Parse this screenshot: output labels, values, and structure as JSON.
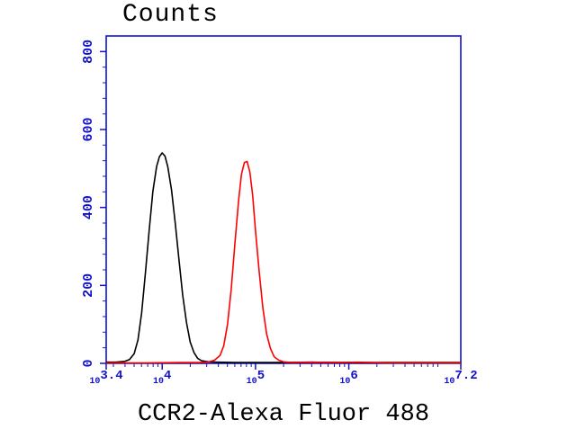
{
  "chart_data": {
    "type": "line",
    "title": "Counts",
    "xlabel": "CCR2-Alexa Fluor 488",
    "ylabel": "Counts",
    "x_scale": "log10",
    "xlim": [
      3.4,
      7.2
    ],
    "ylim": [
      0,
      840
    ],
    "y_ticks": [
      0,
      200,
      400,
      600,
      800
    ],
    "y_minor_step": 40,
    "x_tick_base": "10",
    "x_ticks": [
      {
        "exponent": "3.4",
        "value": 3.4
      },
      {
        "exponent": "4",
        "value": 4
      },
      {
        "exponent": "5",
        "value": 5
      },
      {
        "exponent": "6",
        "value": 6
      },
      {
        "exponent": "7.2",
        "value": 7.2
      }
    ],
    "axis_color": "#1212CC",
    "background": "#FFFFFF",
    "grid": false,
    "legend": "none",
    "series": [
      {
        "name": "black-curve",
        "color": "#000000",
        "points": [
          [
            3.4,
            3
          ],
          [
            3.5,
            3
          ],
          [
            3.6,
            5
          ],
          [
            3.65,
            10
          ],
          [
            3.7,
            25
          ],
          [
            3.74,
            60
          ],
          [
            3.78,
            130
          ],
          [
            3.82,
            230
          ],
          [
            3.86,
            340
          ],
          [
            3.9,
            440
          ],
          [
            3.94,
            505
          ],
          [
            3.97,
            530
          ],
          [
            4.0,
            540
          ],
          [
            4.03,
            532
          ],
          [
            4.06,
            505
          ],
          [
            4.1,
            445
          ],
          [
            4.14,
            360
          ],
          [
            4.18,
            265
          ],
          [
            4.22,
            175
          ],
          [
            4.26,
            105
          ],
          [
            4.3,
            55
          ],
          [
            4.34,
            28
          ],
          [
            4.38,
            13
          ],
          [
            4.42,
            7
          ],
          [
            4.5,
            4
          ],
          [
            4.6,
            3
          ],
          [
            4.8,
            2
          ],
          [
            5.2,
            2
          ],
          [
            5.6,
            3
          ],
          [
            6.0,
            2
          ],
          [
            6.5,
            2
          ],
          [
            7.0,
            2
          ],
          [
            7.2,
            2
          ]
        ]
      },
      {
        "name": "red-curve",
        "color": "#FF0000",
        "points": [
          [
            3.4,
            1
          ],
          [
            3.8,
            1
          ],
          [
            4.2,
            2
          ],
          [
            4.4,
            2
          ],
          [
            4.5,
            4
          ],
          [
            4.56,
            8
          ],
          [
            4.62,
            20
          ],
          [
            4.66,
            45
          ],
          [
            4.7,
            100
          ],
          [
            4.74,
            190
          ],
          [
            4.78,
            310
          ],
          [
            4.82,
            420
          ],
          [
            4.85,
            485
          ],
          [
            4.88,
            515
          ],
          [
            4.91,
            518
          ],
          [
            4.94,
            490
          ],
          [
            4.97,
            430
          ],
          [
            5.0,
            340
          ],
          [
            5.04,
            235
          ],
          [
            5.08,
            140
          ],
          [
            5.12,
            75
          ],
          [
            5.16,
            38
          ],
          [
            5.2,
            17
          ],
          [
            5.25,
            8
          ],
          [
            5.3,
            4
          ],
          [
            5.4,
            2
          ],
          [
            5.6,
            3
          ],
          [
            5.8,
            2
          ],
          [
            6.1,
            3
          ],
          [
            6.4,
            1
          ],
          [
            6.8,
            1
          ],
          [
            7.2,
            1
          ]
        ]
      }
    ]
  }
}
